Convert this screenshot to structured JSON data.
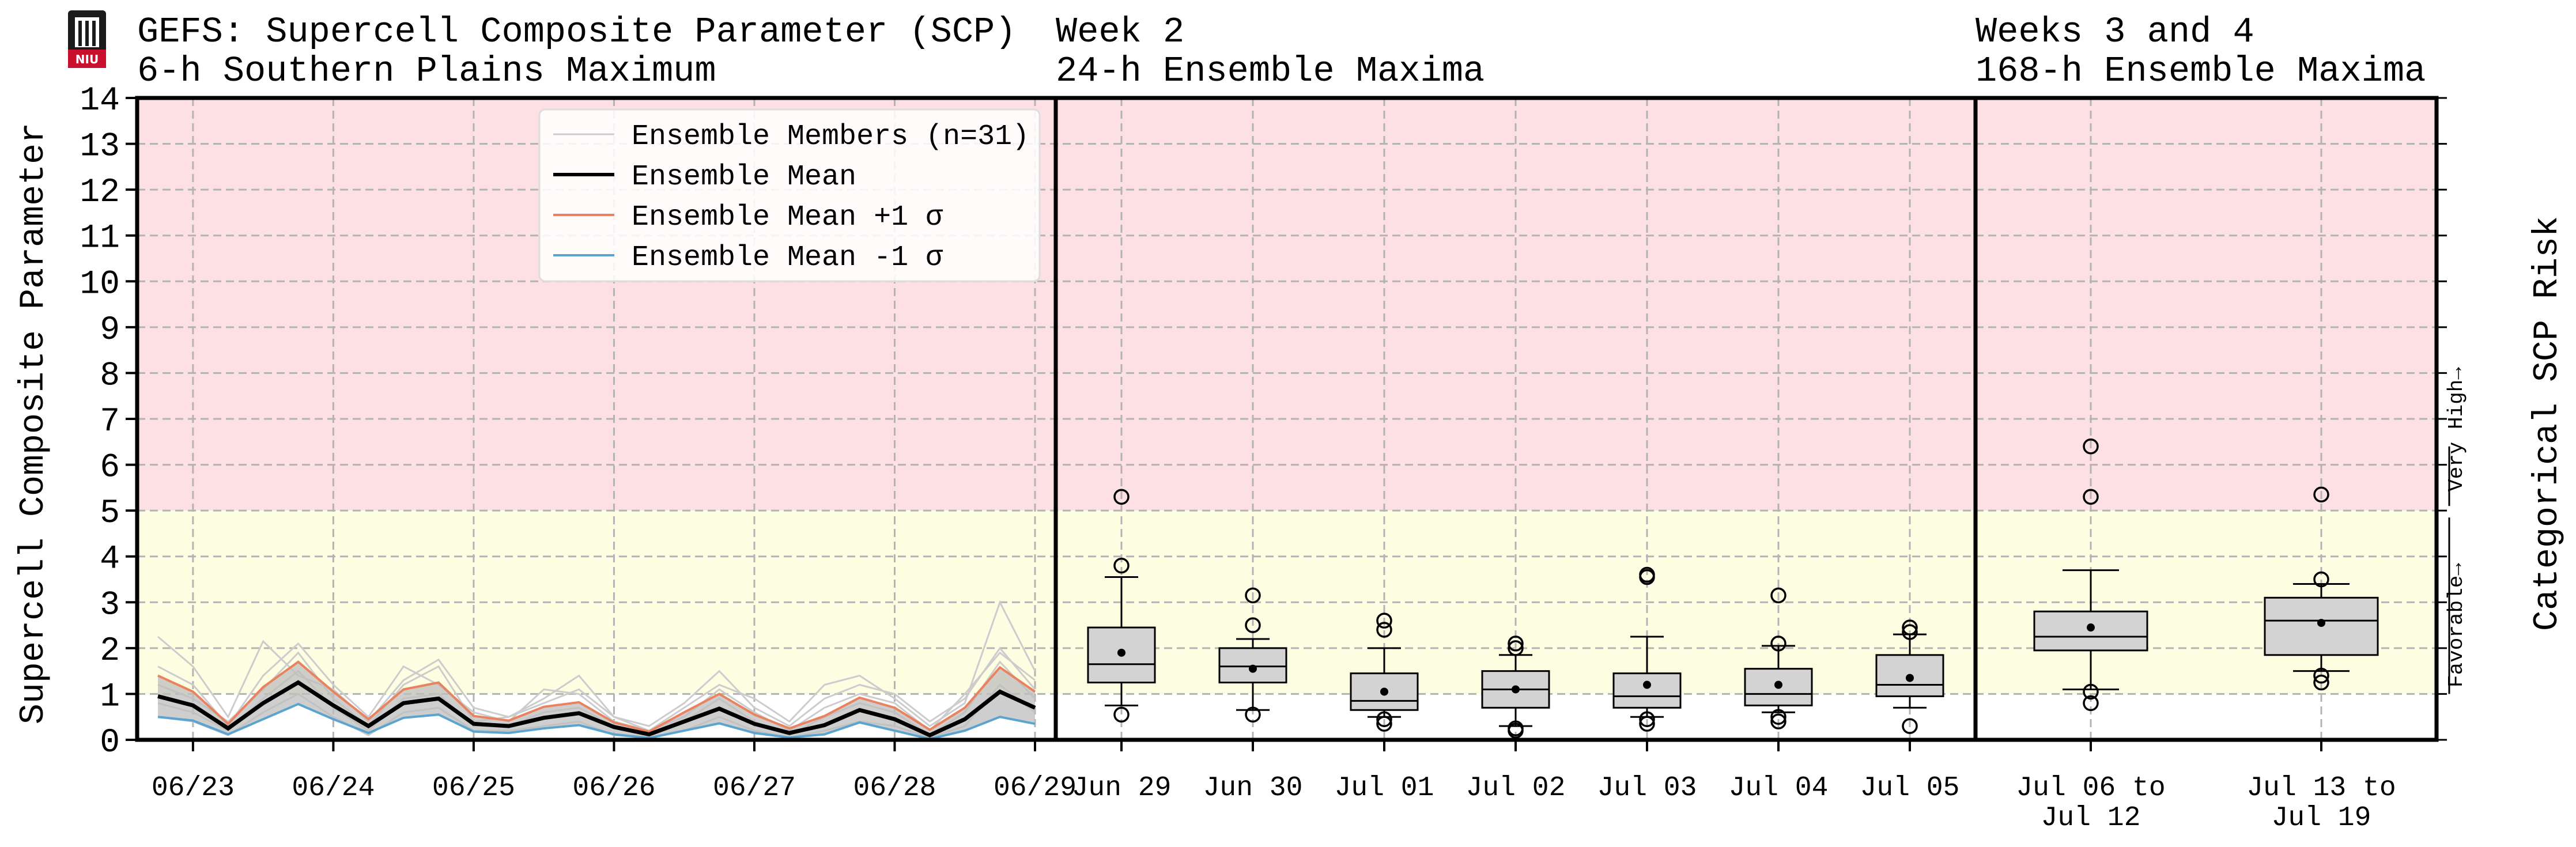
{
  "header": {
    "left_title": "GEFS: Supercell Composite Parameter (SCP)",
    "left_subtitle": "6-h Southern Plains Maximum",
    "mid_title": "Week 2",
    "mid_subtitle": "24-h Ensemble Maxima",
    "right_title": "Weeks 3 and 4",
    "right_subtitle": "168-h Ensemble Maxima",
    "logo_text": "NIU"
  },
  "axes": {
    "ylabel": "Supercell Composite Parameter",
    "ylabel_right": "Categorical SCP Risk",
    "ylim": [
      0,
      14
    ],
    "yticks": [
      "0",
      "1",
      "2",
      "3",
      "4",
      "5",
      "6",
      "7",
      "8",
      "9",
      "10",
      "11",
      "12",
      "13",
      "14"
    ],
    "risk_labels": [
      "Favorable→",
      "Very High→"
    ]
  },
  "colors": {
    "very_high_band": "#fde0e4",
    "favorable_band": "#fdfde2",
    "mean": "#000000",
    "plus_sigma": "#e8825f",
    "minus_sigma": "#5ba4cf",
    "members": "#cccccc",
    "spread_fill": "#bdbdbd",
    "box_fill": "#d3d3d3"
  },
  "legend": {
    "members": "Ensemble Members (n=31)",
    "mean": "Ensemble Mean",
    "plus": "Ensemble Mean +1 σ",
    "minus": "Ensemble Mean -1 σ"
  },
  "chart_data": [
    {
      "type": "line",
      "title": "GEFS: Supercell Composite Parameter (SCP) 6-h Southern Plains Maximum",
      "ylabel": "Supercell Composite Parameter",
      "ylim": [
        0,
        14
      ],
      "x_tick_labels": [
        "06/23",
        "06/24",
        "06/25",
        "06/26",
        "06/27",
        "06/28",
        "06/29"
      ],
      "x_start": "06/22 18Z",
      "x_step_hours": 6,
      "series": [
        {
          "name": "Ensemble Mean",
          "values": [
            0.95,
            0.75,
            0.25,
            0.8,
            1.25,
            0.75,
            0.3,
            0.8,
            0.9,
            0.35,
            0.3,
            0.48,
            0.58,
            0.28,
            0.12,
            0.4,
            0.68,
            0.35,
            0.15,
            0.32,
            0.65,
            0.45,
            0.1,
            0.45,
            1.05,
            0.7
          ]
        },
        {
          "name": "Ensemble Mean +1 σ",
          "values": [
            1.4,
            1.05,
            0.35,
            1.15,
            1.7,
            1.05,
            0.45,
            1.1,
            1.25,
            0.52,
            0.42,
            0.72,
            0.82,
            0.38,
            0.18,
            0.6,
            1.0,
            0.55,
            0.25,
            0.52,
            0.92,
            0.7,
            0.22,
            0.7,
            1.58,
            1.05
          ]
        },
        {
          "name": "Ensemble Mean -1 σ",
          "values": [
            0.5,
            0.42,
            0.12,
            0.45,
            0.78,
            0.45,
            0.15,
            0.48,
            0.55,
            0.18,
            0.15,
            0.25,
            0.32,
            0.12,
            0.04,
            0.2,
            0.36,
            0.15,
            0.05,
            0.12,
            0.38,
            0.2,
            0.02,
            0.2,
            0.5,
            0.35
          ]
        }
      ],
      "members": [
        [
          2.25,
          1.6,
          0.5,
          2.15,
          1.4,
          1.1,
          0.4,
          1.3,
          1.75,
          0.7,
          0.5,
          0.9,
          1.4,
          0.5,
          0.3,
          0.8,
          1.5,
          0.7,
          0.3,
          0.9,
          1.2,
          1.0,
          0.4,
          0.9,
          2.0,
          1.1
        ],
        [
          1.6,
          1.2,
          0.3,
          1.4,
          2.1,
          1.2,
          0.5,
          1.6,
          1.2,
          0.6,
          0.4,
          1.1,
          1.0,
          0.4,
          0.2,
          0.7,
          1.2,
          0.9,
          0.4,
          1.2,
          1.4,
          0.9,
          0.3,
          0.8,
          3.0,
          1.5
        ],
        [
          1.2,
          0.9,
          0.4,
          1.1,
          1.9,
          0.9,
          0.3,
          1.2,
          1.6,
          0.4,
          0.5,
          0.8,
          1.1,
          0.5,
          0.2,
          0.5,
          1.1,
          0.6,
          0.2,
          0.7,
          1.0,
          0.8,
          0.2,
          1.0,
          1.9,
          1.3
        ],
        [
          0.8,
          0.6,
          0.2,
          0.9,
          1.5,
          0.7,
          0.2,
          0.9,
          1.0,
          0.3,
          0.3,
          0.6,
          0.7,
          0.3,
          0.1,
          0.4,
          0.9,
          0.4,
          0.1,
          0.5,
          0.8,
          0.6,
          0.1,
          0.6,
          1.7,
          0.9
        ],
        [
          0.5,
          0.4,
          0.1,
          0.6,
          1.0,
          0.5,
          0.1,
          0.6,
          0.7,
          0.2,
          0.2,
          0.3,
          0.4,
          0.1,
          0.05,
          0.2,
          0.5,
          0.2,
          0.05,
          0.2,
          0.4,
          0.3,
          0.05,
          0.3,
          1.2,
          0.6
        ]
      ]
    },
    {
      "type": "box",
      "title": "Week 2 24-h Ensemble Maxima",
      "ylim": [
        0,
        14
      ],
      "categories": [
        "Jun 29",
        "Jun 30",
        "Jul 01",
        "Jul 02",
        "Jul 03",
        "Jul 04",
        "Jul 05"
      ],
      "boxes": [
        {
          "whisker_low": 0.75,
          "q1": 1.25,
          "median": 1.65,
          "q3": 2.45,
          "whisker_high": 3.55,
          "mean": 1.9,
          "outliers": [
            0.55,
            3.8,
            5.3
          ]
        },
        {
          "whisker_low": 0.65,
          "q1": 1.25,
          "median": 1.6,
          "q3": 2.0,
          "whisker_high": 2.2,
          "mean": 1.55,
          "outliers": [
            0.55,
            2.5,
            3.15
          ]
        },
        {
          "whisker_low": 0.5,
          "q1": 0.65,
          "median": 0.85,
          "q3": 1.45,
          "whisker_high": 2.0,
          "mean": 1.05,
          "outliers": [
            0.35,
            0.45,
            2.4,
            2.6
          ]
        },
        {
          "whisker_low": 0.3,
          "q1": 0.7,
          "median": 1.1,
          "q3": 1.5,
          "whisker_high": 1.85,
          "mean": 1.1,
          "outliers": [
            0.2,
            0.25,
            2.0,
            2.1
          ]
        },
        {
          "whisker_low": 0.5,
          "q1": 0.7,
          "median": 0.95,
          "q3": 1.45,
          "whisker_high": 2.25,
          "mean": 1.2,
          "outliers": [
            0.35,
            0.45,
            3.55,
            3.6
          ]
        },
        {
          "whisker_low": 0.6,
          "q1": 0.75,
          "median": 1.0,
          "q3": 1.55,
          "whisker_high": 2.05,
          "mean": 1.2,
          "outliers": [
            0.4,
            0.5,
            2.1,
            3.15
          ]
        },
        {
          "whisker_low": 0.7,
          "q1": 0.95,
          "median": 1.2,
          "q3": 1.85,
          "whisker_high": 2.3,
          "mean": 1.35,
          "outliers": [
            0.3,
            2.35,
            2.45
          ]
        }
      ]
    },
    {
      "type": "box",
      "title": "Weeks 3 and 4 168-h Ensemble Maxima",
      "ylim": [
        0,
        14
      ],
      "categories": [
        [
          "Jul 06 to",
          "Jul 12"
        ],
        [
          "Jul 13 to",
          "Jul 19"
        ]
      ],
      "boxes": [
        {
          "whisker_low": 1.1,
          "q1": 1.95,
          "median": 2.25,
          "q3": 2.8,
          "whisker_high": 3.7,
          "mean": 2.45,
          "outliers": [
            0.8,
            1.05,
            5.3,
            6.4
          ]
        },
        {
          "whisker_low": 1.5,
          "q1": 1.85,
          "median": 2.6,
          "q3": 3.1,
          "whisker_high": 3.4,
          "mean": 2.55,
          "outliers": [
            1.25,
            1.4,
            3.5,
            5.35
          ]
        }
      ]
    }
  ]
}
